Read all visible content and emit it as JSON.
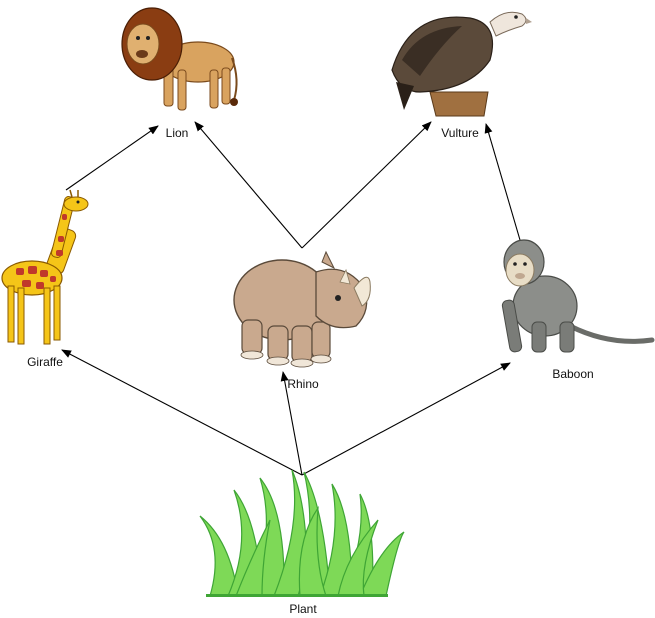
{
  "diagram": {
    "type": "food-web",
    "nodes": [
      {
        "id": "lion",
        "label": "Lion"
      },
      {
        "id": "vulture",
        "label": "Vulture"
      },
      {
        "id": "giraffe",
        "label": "Giraffe"
      },
      {
        "id": "rhino",
        "label": "Rhino"
      },
      {
        "id": "baboon",
        "label": "Baboon"
      },
      {
        "id": "plant",
        "label": "Plant"
      }
    ],
    "edges": [
      {
        "from": "plant",
        "to": "giraffe"
      },
      {
        "from": "plant",
        "to": "rhino"
      },
      {
        "from": "plant",
        "to": "baboon"
      },
      {
        "from": "giraffe",
        "to": "lion"
      },
      {
        "from": "rhino",
        "to": "lion"
      },
      {
        "from": "rhino",
        "to": "vulture"
      },
      {
        "from": "baboon",
        "to": "vulture"
      }
    ]
  },
  "colors": {
    "arrow": "#000000",
    "grass_fill": "#7ed957",
    "grass_stroke": "#3fa535",
    "lion_body": "#d9a35f",
    "lion_mane": "#8a3d12",
    "vulture_body": "#5b4a3a",
    "vulture_head": "#efe6dc",
    "giraffe_body": "#f5c518",
    "giraffe_spots": "#c0392b",
    "rhino_body": "#c9a98e",
    "baboon_body": "#8c8e8a",
    "baboon_face": "#e8ddc6"
  }
}
